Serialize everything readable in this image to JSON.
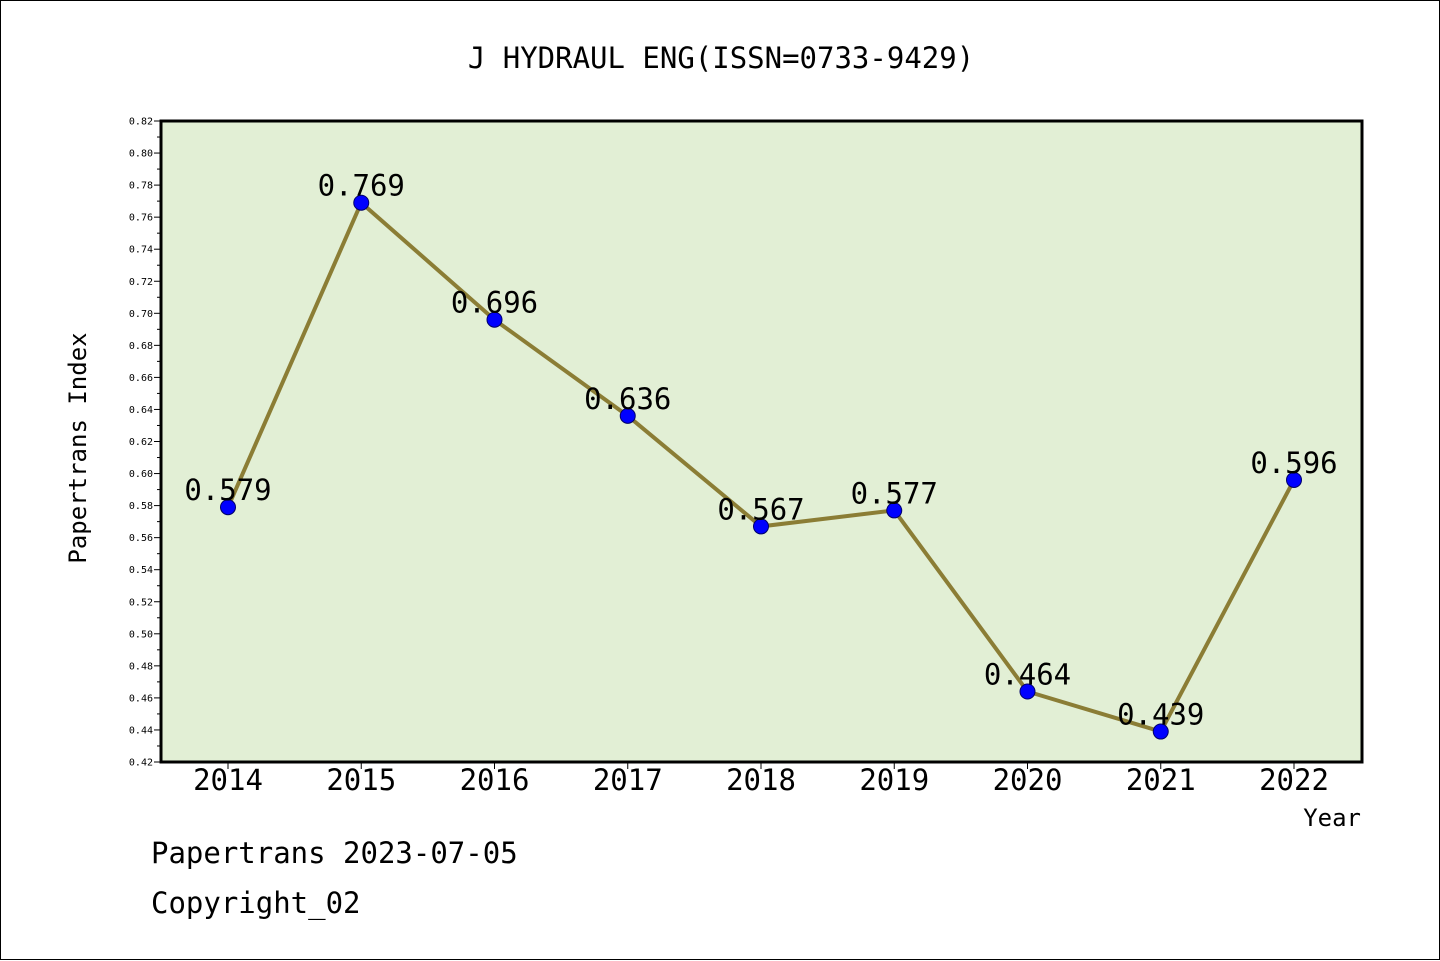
{
  "chart_data": {
    "type": "line",
    "title": "J HYDRAUL ENG(ISSN=0733-9429)",
    "xlabel": "Year",
    "ylabel": "Papertrans Index",
    "categories": [
      "2014",
      "2015",
      "2016",
      "2017",
      "2018",
      "2019",
      "2020",
      "2021",
      "2022"
    ],
    "values": [
      0.579,
      0.769,
      0.696,
      0.636,
      0.567,
      0.577,
      0.464,
      0.439,
      0.596
    ],
    "data_labels": [
      "0.579",
      "0.769",
      "0.696",
      "0.636",
      "0.567",
      "0.577",
      "0.464",
      "0.439",
      "0.596"
    ],
    "ylim": [
      0.42,
      0.82
    ],
    "y_ticks": [
      "0.42",
      "0.44",
      "0.46",
      "0.48",
      "0.50",
      "0.52",
      "0.54",
      "0.56",
      "0.58",
      "0.60",
      "0.62",
      "0.64",
      "0.66",
      "0.68",
      "0.70",
      "0.72",
      "0.74",
      "0.76",
      "0.78",
      "0.80",
      "0.82"
    ],
    "grid": false,
    "legend": "none",
    "colors": {
      "plot_background": "#e2efd5",
      "line": "#8b7d35",
      "marker": "#0000ff",
      "axis": "#000000"
    }
  },
  "footer": {
    "source": "Papertrans 2023-07-05",
    "copyright": "Copyright_02"
  }
}
